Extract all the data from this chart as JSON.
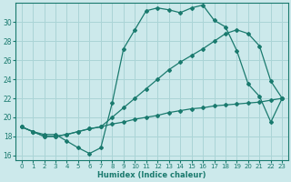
{
  "xlabel": "Humidex (Indice chaleur)",
  "xlim": [
    -0.5,
    23.5
  ],
  "ylim": [
    15.5,
    32
  ],
  "yticks": [
    16,
    18,
    20,
    22,
    24,
    26,
    28,
    30
  ],
  "xticks": [
    0,
    1,
    2,
    3,
    4,
    5,
    6,
    7,
    8,
    9,
    10,
    11,
    12,
    13,
    14,
    15,
    16,
    17,
    18,
    19,
    20,
    21,
    22,
    23
  ],
  "bg_color": "#cce9eb",
  "grid_color": "#aad4d6",
  "line_color": "#1a7a6e",
  "line1_x": [
    0,
    1,
    2,
    3,
    4,
    5,
    6,
    7,
    8,
    9,
    10,
    11,
    12,
    13,
    14,
    15,
    16,
    17,
    18,
    19,
    20,
    21,
    22,
    23
  ],
  "line1_y": [
    19.0,
    18.5,
    18.2,
    18.2,
    17.5,
    16.8,
    16.2,
    16.8,
    21.5,
    27.2,
    29.2,
    31.2,
    31.5,
    31.3,
    31.0,
    31.5,
    31.8,
    30.2,
    29.5,
    27.0,
    23.5,
    22.2,
    19.5,
    22.0
  ],
  "line2_x": [
    0,
    1,
    2,
    3,
    4,
    5,
    6,
    7,
    8,
    9,
    10,
    11,
    12,
    13,
    14,
    15,
    16,
    17,
    18,
    19,
    20,
    21,
    22,
    23
  ],
  "line2_y": [
    19.0,
    18.5,
    18.0,
    18.0,
    18.2,
    18.5,
    18.8,
    19.0,
    20.0,
    21.0,
    22.0,
    23.0,
    24.0,
    25.0,
    25.8,
    26.5,
    27.2,
    28.0,
    28.8,
    29.2,
    28.8,
    27.5,
    23.8,
    22.0
  ],
  "line3_x": [
    0,
    1,
    2,
    3,
    4,
    5,
    6,
    7,
    8,
    9,
    10,
    11,
    12,
    13,
    14,
    15,
    16,
    17,
    18,
    19,
    20,
    21,
    22,
    23
  ],
  "line3_y": [
    19.0,
    18.5,
    18.0,
    18.0,
    18.2,
    18.5,
    18.8,
    19.0,
    19.3,
    19.5,
    19.8,
    20.0,
    20.2,
    20.5,
    20.7,
    20.9,
    21.0,
    21.2,
    21.3,
    21.4,
    21.5,
    21.6,
    21.8,
    22.0
  ]
}
